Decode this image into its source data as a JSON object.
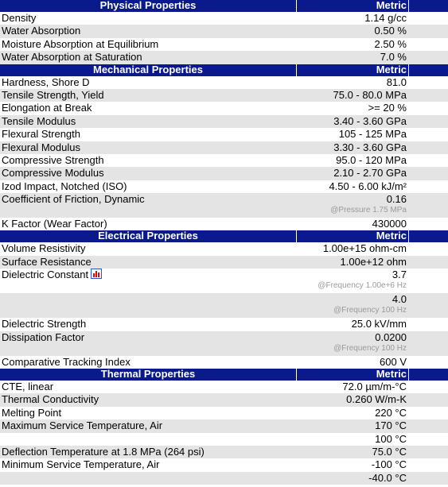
{
  "sections": [
    {
      "header": "Physical Properties",
      "unit": "Metric",
      "rows": [
        {
          "name": "Density",
          "value": "1.14 g/cc"
        },
        {
          "name": "Water Absorption",
          "value": "0.50 %"
        },
        {
          "name": "Moisture Absorption at Equilibrium",
          "value": "2.50 %"
        },
        {
          "name": "Water Absorption at Saturation",
          "value": "7.0 %"
        }
      ]
    },
    {
      "header": "Mechanical Properties",
      "unit": "Metric",
      "rows": [
        {
          "name": "Hardness, Shore D",
          "value": "81.0"
        },
        {
          "name": "Tensile Strength, Yield",
          "value": "75.0 - 80.0 MPa"
        },
        {
          "name": "Elongation at Break",
          "value": ">= 20 %"
        },
        {
          "name": "Tensile Modulus",
          "value": "3.40 - 3.60 GPa"
        },
        {
          "name": "Flexural Strength",
          "value": "105 - 125 MPa"
        },
        {
          "name": "Flexural Modulus",
          "value": "3.30 - 3.60 GPa"
        },
        {
          "name": "Compressive Strength",
          "value": "95.0 - 120 MPa"
        },
        {
          "name": "Compressive Modulus",
          "value": "2.10 - 2.70 GPa"
        },
        {
          "name": "Izod Impact, Notched (ISO)",
          "value": "4.50 - 6.00 kJ/m²"
        },
        {
          "name": "Coefficient of Friction, Dynamic",
          "value": "0.16",
          "note": "@Pressure 1.75 MPa"
        },
        {
          "name": "K Factor (Wear Factor)",
          "value": "430000"
        }
      ]
    },
    {
      "header": "Electrical Properties",
      "unit": "Metric",
      "rows": [
        {
          "name": "Volume Resistivity",
          "value": "1.00e+15 ohm-cm"
        },
        {
          "name": "Surface Resistance",
          "value": "1.00e+12 ohm"
        },
        {
          "name": "Dielectric Constant",
          "value": "3.7",
          "note": "@Frequency 1.00e+6 Hz",
          "chart_icon": true
        },
        {
          "name": "",
          "value": "4.0",
          "note": "@Frequency 100 Hz"
        },
        {
          "name": "Dielectric Strength",
          "value": "25.0 kV/mm"
        },
        {
          "name": "Dissipation Factor",
          "value": "0.0200",
          "note": "@Frequency 100 Hz"
        },
        {
          "name": "Comparative Tracking Index",
          "value": "600 V"
        }
      ]
    },
    {
      "header": "Thermal Properties",
      "unit": "Metric",
      "rows": [
        {
          "name": "CTE, linear",
          "value": "72.0 µm/m-°C"
        },
        {
          "name": "Thermal Conductivity",
          "value": "0.260 W/m-K"
        },
        {
          "name": "Melting Point",
          "value": "220 °C"
        },
        {
          "name": "Maximum Service Temperature, Air",
          "value": "170 °C"
        },
        {
          "name": "",
          "value": "100 °C"
        },
        {
          "name": "Deflection Temperature at 1.8 MPa (264 psi)",
          "value": "75.0 °C"
        },
        {
          "name": "Minimum Service Temperature, Air",
          "value": "-100 °C"
        },
        {
          "name": "",
          "value": "-40.0 °C"
        }
      ]
    }
  ]
}
